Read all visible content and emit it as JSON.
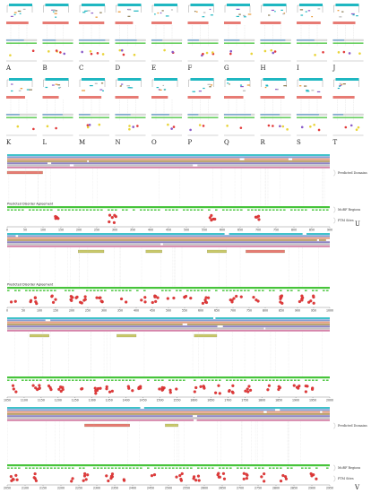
{
  "panel_letters": [
    "A",
    "B",
    "C",
    "D",
    "E",
    "F",
    "G",
    "H",
    "I",
    "J",
    "K",
    "L",
    "M",
    "N",
    "O",
    "P",
    "Q",
    "R",
    "S",
    "T"
  ],
  "big_panels": [
    {
      "id": "U",
      "row_label": "Predicted Disorder Agreement",
      "side_labels": [
        "Predicted Domains",
        "MoRF Regions",
        "PTM Sites"
      ],
      "axis_ticks": [
        "0",
        "50",
        "100",
        "150",
        "200",
        "250",
        "300",
        "350",
        "400",
        "450",
        "500",
        "550",
        "600",
        "650",
        "700",
        "750",
        "800",
        "850",
        "900"
      ]
    },
    {
      "id": "V-1",
      "row_label": "Predicted Disorder Agreement",
      "axis_ticks": [
        "0",
        "50",
        "100",
        "150",
        "200",
        "250",
        "300",
        "350",
        "400",
        "450",
        "500",
        "550",
        "600",
        "650",
        "700",
        "750",
        "800",
        "850",
        "900",
        "950",
        "1000"
      ]
    },
    {
      "id": "V-2",
      "axis_ticks": [
        "1050",
        "1100",
        "1150",
        "1200",
        "1250",
        "1300",
        "1350",
        "1400",
        "1450",
        "1500",
        "1550",
        "1600",
        "1650",
        "1700",
        "1750",
        "1800",
        "1850",
        "1900",
        "1950",
        "2000"
      ]
    },
    {
      "id": "V-3",
      "side_labels": [
        "Predicted Domains",
        "MoRF Regions",
        "PTM Sites"
      ],
      "axis_ticks": [
        "2050",
        "2100",
        "2150",
        "2200",
        "2250",
        "2300",
        "2350",
        "2400",
        "2450",
        "2500",
        "2550",
        "2600",
        "2650",
        "2700",
        "2750",
        "2800",
        "2850",
        "2900",
        "2950"
      ]
    }
  ],
  "section_letters": {
    "U": "U",
    "V": "V"
  },
  "colors": {
    "teal": "#1fb7c1",
    "salmon": "#e77b74",
    "olive": "#c9c96a",
    "green": "#46c43a",
    "orange": "#e8962f",
    "purple": "#8b5cc8",
    "red_dot": "#e23a3a",
    "yellow_dot": "#e9d43a",
    "brown": "#8a7a52",
    "grey": "#b9b9b9",
    "blue_bar": "#3c8ccc"
  }
}
